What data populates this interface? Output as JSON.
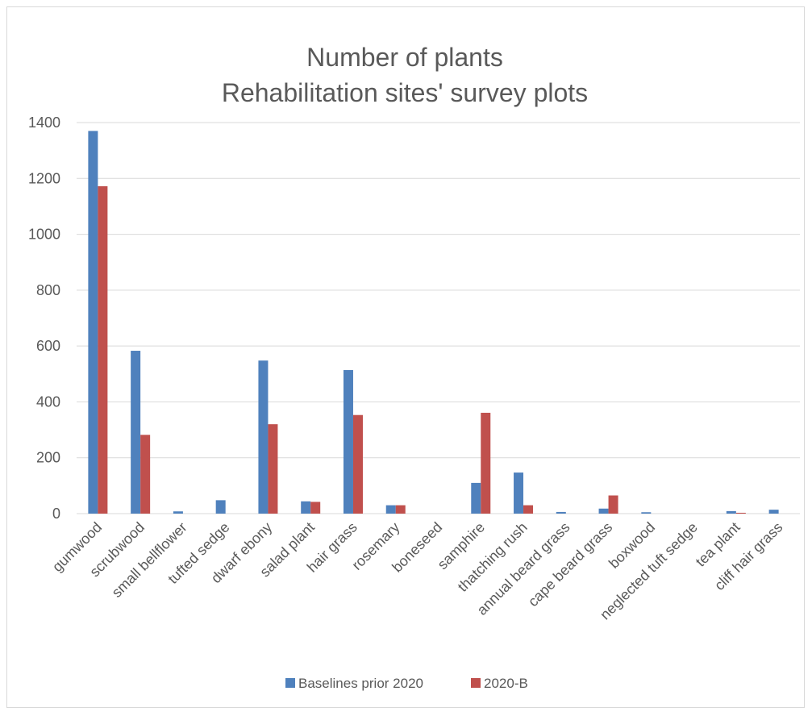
{
  "chart_data": {
    "type": "bar",
    "title": [
      "Number of plants",
      "Rehabilitation sites' survey plots"
    ],
    "xlabel": "",
    "ylabel": "",
    "ylim": [
      0,
      1400
    ],
    "yticks": [
      0,
      200,
      400,
      600,
      800,
      1000,
      1200,
      1400
    ],
    "grid": true,
    "legend_position": "bottom",
    "categories": [
      "gumwood",
      "scrubwood",
      "small bellflower",
      "tufted sedge",
      "dwarf ebony",
      "salad plant",
      "hair grass",
      "rosemary",
      "boneseed",
      "samphire",
      "thatching rush",
      "annual beard grass",
      "cape beard grass",
      "boxwood",
      "neglected tuft sedge",
      "tea plant",
      "cliff hair grass"
    ],
    "series": [
      {
        "name": "Baselines prior 2020",
        "color": "#4f81bd",
        "values": [
          1370,
          583,
          8,
          48,
          548,
          44,
          514,
          30,
          0,
          110,
          147,
          6,
          18,
          5,
          0,
          9,
          14
        ]
      },
      {
        "name": "2020-B",
        "color": "#c0504d",
        "values": [
          1172,
          282,
          0,
          0,
          320,
          42,
          353,
          30,
          0,
          361,
          30,
          0,
          65,
          0,
          0,
          3,
          0
        ]
      }
    ]
  }
}
